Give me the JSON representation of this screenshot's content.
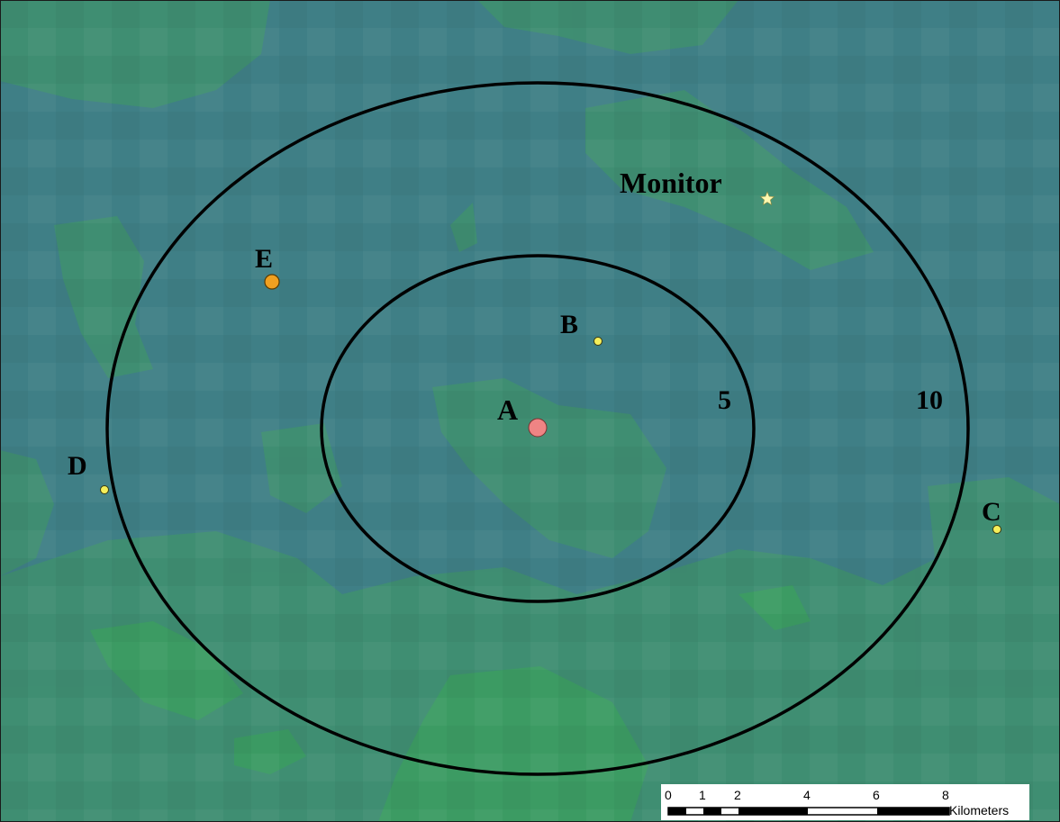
{
  "map": {
    "colors": {
      "base": "#3f7f86",
      "vegetation": "#3f9a63",
      "ring_stroke": "#000000",
      "source_a": "#ef8484",
      "source_e": "#f0a020",
      "small_site": "#f5ef5a",
      "monitor_star": "#fff8b0"
    },
    "rings": [
      {
        "label": "5",
        "radius_km": 5
      },
      {
        "label": "10",
        "radius_km": 10
      }
    ],
    "sites": [
      {
        "id": "A",
        "label": "A",
        "symbol": "large-red-circle"
      },
      {
        "id": "B",
        "label": "B",
        "symbol": "small-yellow-circle"
      },
      {
        "id": "C",
        "label": "C",
        "symbol": "small-yellow-circle"
      },
      {
        "id": "D",
        "label": "D",
        "symbol": "small-yellow-circle"
      },
      {
        "id": "E",
        "label": "E",
        "symbol": "orange-circle"
      },
      {
        "id": "monitor",
        "label": "Monitor",
        "symbol": "star-icon"
      }
    ],
    "scale_bar": {
      "ticks": [
        "0",
        "1",
        "2",
        "4",
        "6",
        "8"
      ],
      "unit": "Kilometers"
    }
  }
}
